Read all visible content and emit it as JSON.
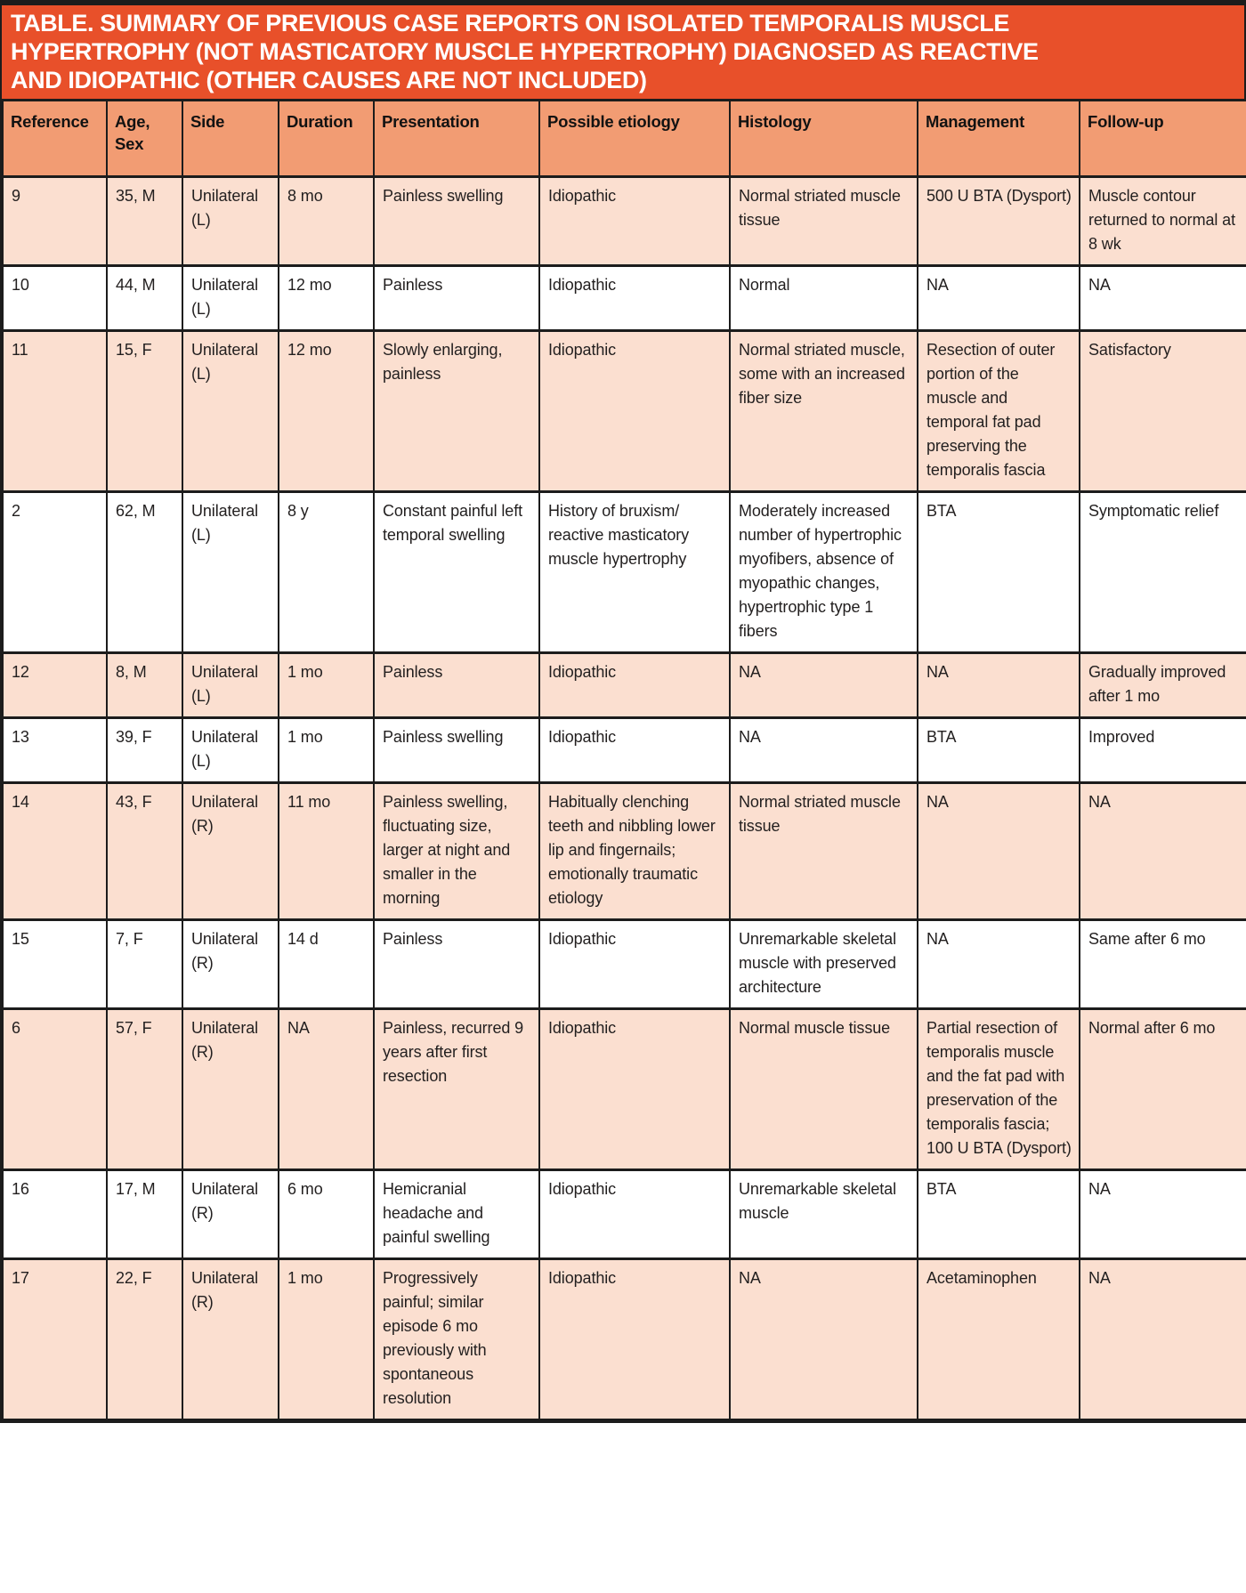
{
  "title_lines": [
    "TABLE. SUMMARY OF PREVIOUS CASE REPORTS ON ISOLATED TEMPORALIS MUSCLE",
    "HYPERTROPHY (NOT MASTICATORY MUSCLE HYPERTROPHY) DIAGNOSED AS REACTIVE",
    "AND IDIOPATHIC (OTHER CAUSES ARE NOT INCLUDED)"
  ],
  "colors": {
    "title_bar_bg": "#E8502A",
    "title_text": "#FFFFFF",
    "header_row_bg": "#F29C73",
    "row_stripe_bg": "#FBDFD0",
    "row_white_bg": "#FFFFFF",
    "border": "#1C1C1C",
    "cell_text": "#221F1F"
  },
  "table": {
    "columns": [
      "Reference",
      "Age, Sex",
      "Side",
      "Duration",
      "Presentation",
      "Possible etiology",
      "Histology",
      "Management",
      "Follow-up"
    ],
    "rows": [
      [
        "9",
        "35, M",
        "Unilateral (L)",
        "8 mo",
        "Painless swelling",
        "Idiopathic",
        "Normal striated muscle tissue",
        "500 U BTA (Dysport)",
        "Muscle contour returned to normal at 8 wk"
      ],
      [
        "10",
        "44, M",
        "Unilateral (L)",
        "12 mo",
        "Painless",
        "Idiopathic",
        "Normal",
        "NA",
        "NA"
      ],
      [
        "11",
        "15, F",
        "Unilateral (L)",
        "12 mo",
        "Slowly enlarging, painless",
        "Idiopathic",
        "Normal striated muscle, some with an increased fiber size",
        "Resection of outer portion of the muscle and temporal fat pad preserving the temporalis fascia",
        "Satisfactory"
      ],
      [
        "2",
        "62, M",
        "Unilateral (L)",
        "8 y",
        "Constant painful left temporal swelling",
        "History of bruxism/ reactive masticatory muscle hypertrophy",
        "Moderately increased number of hypertrophic myofibers, absence of myopathic changes, hypertrophic type 1 fibers",
        "BTA",
        "Symptomatic relief"
      ],
      [
        "12",
        "8, M",
        "Unilateral (L)",
        "1 mo",
        "Painless",
        "Idiopathic",
        "NA",
        "NA",
        "Gradually improved after 1 mo"
      ],
      [
        "13",
        "39, F",
        "Unilateral (L)",
        "1 mo",
        "Painless swelling",
        "Idiopathic",
        "NA",
        "BTA",
        "Improved"
      ],
      [
        "14",
        "43, F",
        "Unilateral (R)",
        "11 mo",
        "Painless swelling, fluctuating size, larger at night and smaller in the morning",
        "Habitually clenching teeth and nibbling lower lip and fingernails; emotionally traumatic etiology",
        "Normal striated muscle tissue",
        "NA",
        "NA"
      ],
      [
        "15",
        "7, F",
        "Unilateral (R)",
        "14 d",
        "Painless",
        "Idiopathic",
        "Unremarkable skeletal muscle with preserved architecture",
        "NA",
        "Same after 6 mo"
      ],
      [
        "6",
        "57, F",
        "Unilateral (R)",
        "NA",
        "Painless, recurred 9 years after first resection",
        "Idiopathic",
        "Normal muscle tissue",
        "Partial resection of temporalis muscle and the fat pad with preservation of the temporalis fascia; 100 U BTA (Dysport)",
        "Normal after 6 mo"
      ],
      [
        "16",
        "17, M",
        "Unilateral (R)",
        "6 mo",
        "Hemicranial headache and painful swelling",
        "Idiopathic",
        "Unremarkable skeletal muscle",
        "BTA",
        "NA"
      ],
      [
        "17",
        "22, F",
        "Unilateral (R)",
        "1 mo",
        "Progressively painful; similar episode 6 mo previously with spontaneous resolution",
        "Idiopathic",
        "NA",
        "Acetaminophen",
        "NA"
      ]
    ]
  }
}
